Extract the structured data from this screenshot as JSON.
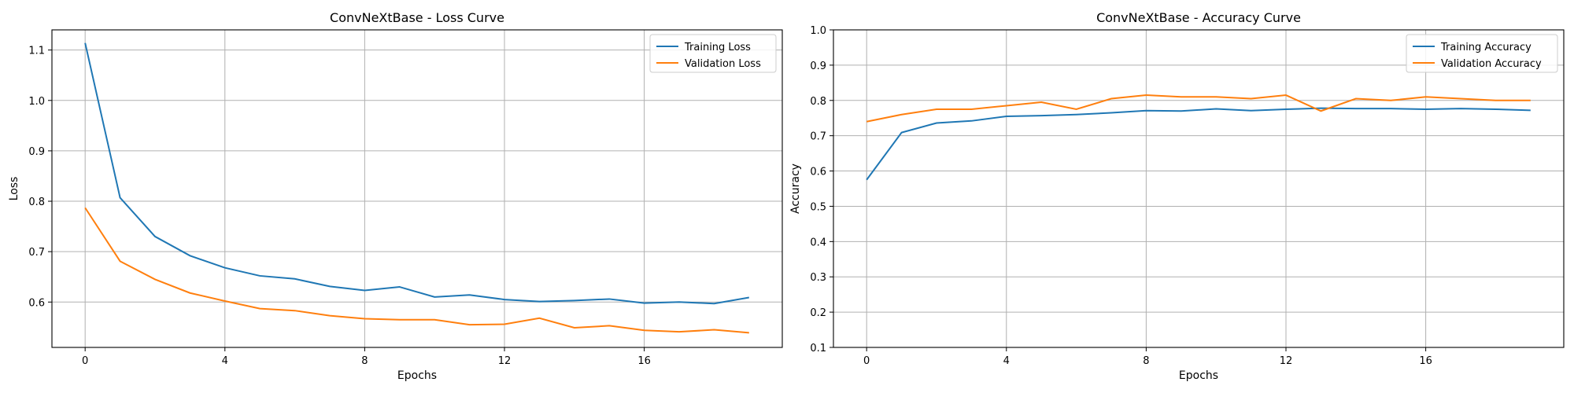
{
  "chart_data": [
    {
      "type": "line",
      "title": "ConvNeXtBase - Loss Curve",
      "xlabel": "Epochs",
      "ylabel": "Loss",
      "x": [
        0,
        1,
        2,
        3,
        4,
        5,
        6,
        7,
        8,
        9,
        10,
        11,
        12,
        13,
        14,
        15,
        16,
        17,
        18,
        19
      ],
      "xticks": [
        0,
        4,
        8,
        12,
        16
      ],
      "xlim": [
        -0.95,
        19.95
      ],
      "ylim": [
        0.51,
        1.14
      ],
      "yticks": [
        0.6,
        0.7,
        0.8,
        0.9,
        1.0,
        1.1
      ],
      "grid": true,
      "legend": "top-right",
      "series": [
        {
          "name": "Training Loss",
          "color": "#1f77b4",
          "values": [
            1.114,
            0.807,
            0.73,
            0.692,
            0.668,
            0.652,
            0.646,
            0.631,
            0.623,
            0.63,
            0.61,
            0.614,
            0.605,
            0.601,
            0.603,
            0.606,
            0.598,
            0.6,
            0.597,
            0.609
          ]
        },
        {
          "name": "Validation Loss",
          "color": "#ff7f0e",
          "values": [
            0.787,
            0.681,
            0.645,
            0.618,
            0.602,
            0.587,
            0.583,
            0.573,
            0.567,
            0.565,
            0.565,
            0.555,
            0.556,
            0.568,
            0.549,
            0.553,
            0.544,
            0.541,
            0.545,
            0.539
          ]
        }
      ]
    },
    {
      "type": "line",
      "title": "ConvNeXtBase - Accuracy Curve",
      "xlabel": "Epochs",
      "ylabel": "Accuracy",
      "x": [
        0,
        1,
        2,
        3,
        4,
        5,
        6,
        7,
        8,
        9,
        10,
        11,
        12,
        13,
        14,
        15,
        16,
        17,
        18,
        19
      ],
      "xticks": [
        0,
        4,
        8,
        12,
        16
      ],
      "xlim": [
        -0.95,
        19.95
      ],
      "ylim": [
        0.1,
        1.0
      ],
      "yticks": [
        0.1,
        0.2,
        0.3,
        0.4,
        0.5,
        0.6,
        0.7,
        0.8,
        0.9,
        1.0
      ],
      "grid": true,
      "legend": "top-right",
      "series": [
        {
          "name": "Training Accuracy",
          "color": "#1f77b4",
          "values": [
            0.575,
            0.709,
            0.736,
            0.742,
            0.755,
            0.757,
            0.76,
            0.765,
            0.771,
            0.77,
            0.776,
            0.771,
            0.775,
            0.778,
            0.777,
            0.777,
            0.775,
            0.777,
            0.775,
            0.772
          ]
        },
        {
          "name": "Validation Accuracy",
          "color": "#ff7f0e",
          "values": [
            0.74,
            0.76,
            0.775,
            0.775,
            0.785,
            0.795,
            0.775,
            0.805,
            0.815,
            0.81,
            0.81,
            0.805,
            0.815,
            0.77,
            0.805,
            0.8,
            0.81,
            0.805,
            0.8,
            0.8
          ]
        }
      ]
    }
  ]
}
